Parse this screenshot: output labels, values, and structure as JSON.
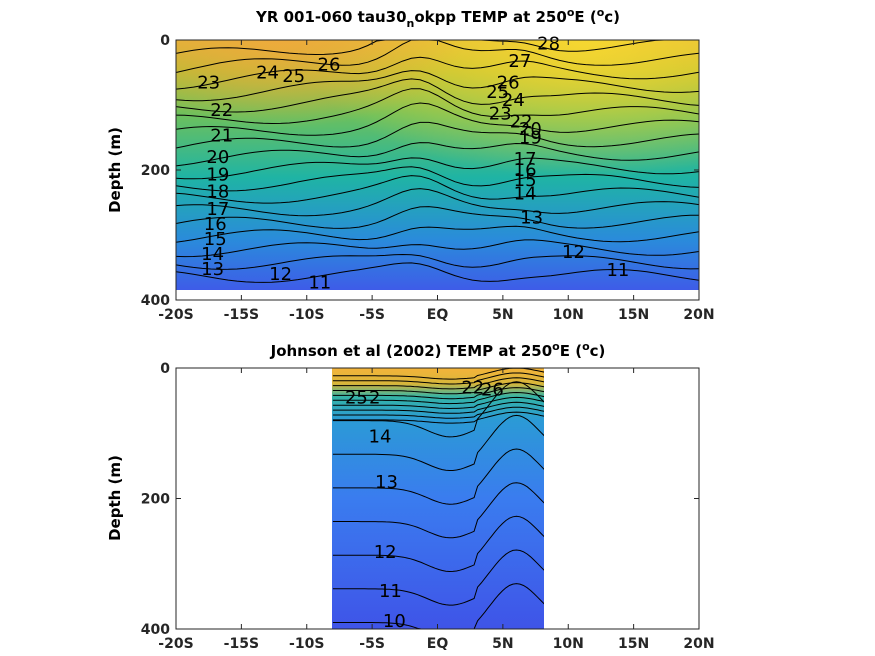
{
  "chart_data": [
    {
      "type": "contour",
      "title_parts": [
        "YR 001-060 tau30",
        "n",
        "okpp TEMP at 250",
        "o",
        "E (",
        "o",
        "c)"
      ],
      "ylabel": "Depth (m)",
      "xlabel": "",
      "x_ticks": [
        "-20S",
        "-15S",
        "-10S",
        "-5S",
        "EQ",
        "5N",
        "10N",
        "15N",
        "20N"
      ],
      "x_tick_values": [
        -20,
        -15,
        -10,
        -5,
        0,
        5,
        10,
        15,
        20
      ],
      "y_ticks": [
        "0",
        "200",
        "400"
      ],
      "y_tick_values": [
        0,
        200,
        400
      ],
      "xlim": [
        -20,
        20
      ],
      "ylim": [
        400,
        0
      ],
      "data_xlim": [
        -20,
        20
      ],
      "data_ylim": [
        0,
        385
      ],
      "color_range": [
        8,
        29
      ],
      "contour_levels": [
        11,
        12,
        13,
        14,
        15,
        16,
        17,
        18,
        19,
        20,
        21,
        22,
        23,
        24,
        25,
        26,
        27,
        28
      ],
      "contour_labels": [
        {
          "text": "28",
          "x": 8.5,
          "y": 5
        },
        {
          "text": "27",
          "x": 6.3,
          "y": 32
        },
        {
          "text": "26",
          "x": 5.4,
          "y": 65
        },
        {
          "text": "26",
          "x": -8.3,
          "y": 38
        },
        {
          "text": "25",
          "x": -11,
          "y": 55
        },
        {
          "text": "24",
          "x": -13,
          "y": 50
        },
        {
          "text": "23",
          "x": -17.5,
          "y": 65
        },
        {
          "text": "22",
          "x": -16.5,
          "y": 108
        },
        {
          "text": "21",
          "x": -16.5,
          "y": 147
        },
        {
          "text": "20",
          "x": -16.8,
          "y": 180
        },
        {
          "text": "19",
          "x": -16.8,
          "y": 207
        },
        {
          "text": "18",
          "x": -16.8,
          "y": 233
        },
        {
          "text": "17",
          "x": -16.8,
          "y": 260
        },
        {
          "text": "16",
          "x": -17,
          "y": 283
        },
        {
          "text": "15",
          "x": -17,
          "y": 306
        },
        {
          "text": "14",
          "x": -17.2,
          "y": 329
        },
        {
          "text": "13",
          "x": -17.2,
          "y": 352
        },
        {
          "text": "12",
          "x": -12,
          "y": 360
        },
        {
          "text": "11",
          "x": -9,
          "y": 373
        },
        {
          "text": "25",
          "x": 4.6,
          "y": 80
        },
        {
          "text": "24",
          "x": 5.8,
          "y": 92
        },
        {
          "text": "23",
          "x": 4.8,
          "y": 113
        },
        {
          "text": "22",
          "x": 6.4,
          "y": 125
        },
        {
          "text": "20",
          "x": 7.1,
          "y": 137
        },
        {
          "text": "19",
          "x": 7.1,
          "y": 150
        },
        {
          "text": "17",
          "x": 6.7,
          "y": 183
        },
        {
          "text": "16",
          "x": 6.7,
          "y": 200
        },
        {
          "text": "15",
          "x": 6.7,
          "y": 215
        },
        {
          "text": "14",
          "x": 6.7,
          "y": 236
        },
        {
          "text": "13",
          "x": 7.2,
          "y": 273
        },
        {
          "text": "12",
          "x": 10.4,
          "y": 326
        },
        {
          "text": "11",
          "x": 13.8,
          "y": 354
        }
      ]
    },
    {
      "type": "contour",
      "title_parts": [
        "Johnson et al (2002) TEMP at 250",
        "o",
        "E (",
        "o",
        "c)"
      ],
      "ylabel": "Depth (m)",
      "xlabel": "",
      "x_ticks": [
        "-20S",
        "-15S",
        "-10S",
        "-5S",
        "EQ",
        "5N",
        "10N",
        "15N",
        "20N"
      ],
      "x_tick_values": [
        -20,
        -15,
        -10,
        -5,
        0,
        5,
        10,
        15,
        20
      ],
      "y_ticks": [
        "0",
        "200",
        "400"
      ],
      "y_tick_values": [
        0,
        200,
        400
      ],
      "xlim": [
        -20,
        20
      ],
      "ylim": [
        400,
        0
      ],
      "data_xlim": [
        -8,
        8.2
      ],
      "data_ylim": [
        0,
        400
      ],
      "color_range": [
        8,
        29
      ],
      "contour_levels": [
        10,
        11,
        12,
        13,
        14,
        15,
        16,
        17,
        18,
        19,
        20,
        21,
        22,
        23,
        24,
        25,
        26
      ],
      "contour_labels": [
        {
          "text": "25",
          "x": -6.2,
          "y": 45
        },
        {
          "text": "2",
          "x": -4.8,
          "y": 45
        },
        {
          "text": "14",
          "x": -4.4,
          "y": 105
        },
        {
          "text": "13",
          "x": -3.9,
          "y": 175
        },
        {
          "text": "12",
          "x": -4,
          "y": 282
        },
        {
          "text": "11",
          "x": -3.6,
          "y": 342
        },
        {
          "text": "10",
          "x": -3.3,
          "y": 388
        },
        {
          "text": "22",
          "x": 2.7,
          "y": 30
        },
        {
          "text": "26",
          "x": 4.2,
          "y": 33
        }
      ]
    }
  ]
}
